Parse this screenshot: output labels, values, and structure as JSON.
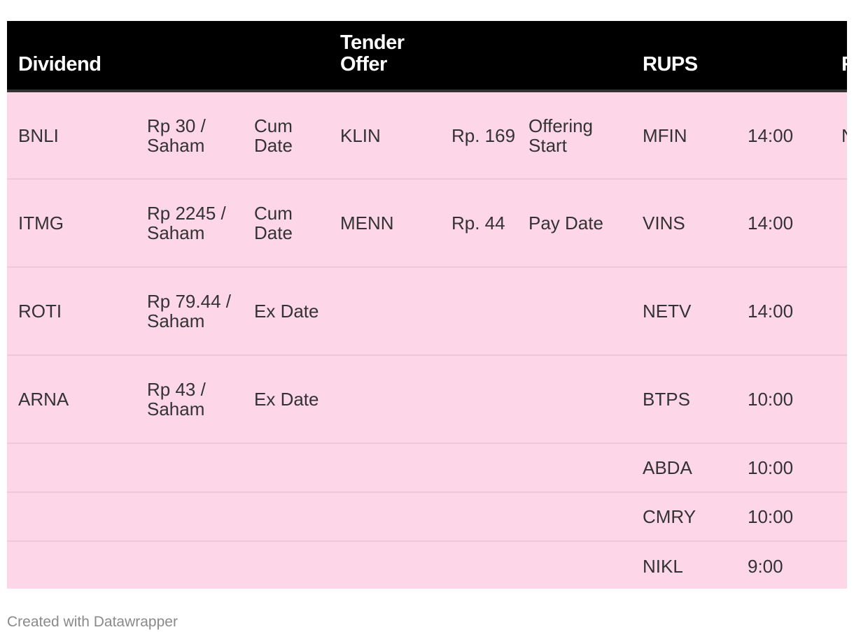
{
  "header": {
    "dividend": "Dividend",
    "tender": "Tender Offer",
    "rups": "RUPS",
    "cut": "R"
  },
  "rows": [
    [
      "BNLI",
      "Rp 30 / Saham",
      "Cum Date",
      "KLIN",
      "Rp. 169",
      "Offering Start",
      "MFIN",
      "14:00",
      "N"
    ],
    [
      "ITMG",
      "Rp 2245 / Saham",
      "Cum Date",
      "MENN",
      "Rp. 44",
      "Pay Date",
      "VINS",
      "14:00",
      ""
    ],
    [
      "ROTI",
      "Rp 79.44 / Saham",
      "Ex Date",
      "",
      "",
      "",
      "NETV",
      "14:00",
      ""
    ],
    [
      "ARNA",
      "Rp 43 / Saham",
      "Ex Date",
      "",
      "",
      "",
      "BTPS",
      "10:00",
      ""
    ],
    [
      "",
      "",
      "",
      "",
      "",
      "",
      "ABDA",
      "10:00",
      ""
    ],
    [
      "",
      "",
      "",
      "",
      "",
      "",
      "CMRY",
      "10:00",
      ""
    ],
    [
      "",
      "",
      "",
      "",
      "",
      "",
      "NIKL",
      "9:00",
      ""
    ]
  ],
  "footer": "Created with Datawrapper",
  "colors": {
    "header_bg": "#000000",
    "row_bg": "#fdd7e8"
  }
}
